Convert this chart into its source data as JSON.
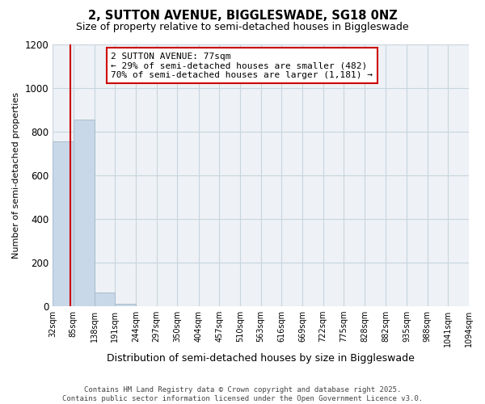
{
  "title": "2, SUTTON AVENUE, BIGGLESWADE, SG18 0NZ",
  "subtitle": "Size of property relative to semi-detached houses in Biggleswade",
  "xlabel": "Distribution of semi-detached houses by size in Biggleswade",
  "ylabel": "Number of semi-detached properties",
  "footer_line1": "Contains HM Land Registry data © Crown copyright and database right 2025.",
  "footer_line2": "Contains public sector information licensed under the Open Government Licence v3.0.",
  "bin_edges": [
    32,
    85,
    138,
    191,
    244,
    297,
    350,
    404,
    457,
    510,
    563,
    616,
    669,
    722,
    775,
    828,
    882,
    935,
    988,
    1041,
    1094
  ],
  "bar_heights": [
    755,
    855,
    60,
    10,
    0,
    0,
    0,
    0,
    0,
    0,
    0,
    0,
    0,
    0,
    0,
    0,
    0,
    0,
    0,
    0
  ],
  "bar_color": "#c8d8e8",
  "bar_edgecolor": "#aabcce",
  "property_size": 77,
  "property_line_color": "#cc0000",
  "annotation_text": "2 SUTTON AVENUE: 77sqm\n← 29% of semi-detached houses are smaller (482)\n70% of semi-detached houses are larger (1,181) →",
  "annotation_box_facecolor": "#ffffff",
  "annotation_box_edgecolor": "#cc0000",
  "ylim": [
    0,
    1200
  ],
  "yticks": [
    0,
    200,
    400,
    600,
    800,
    1000,
    1200
  ],
  "grid_color": "#c8d4de",
  "background_color": "#ffffff",
  "plot_background_color": "#eef2f6"
}
